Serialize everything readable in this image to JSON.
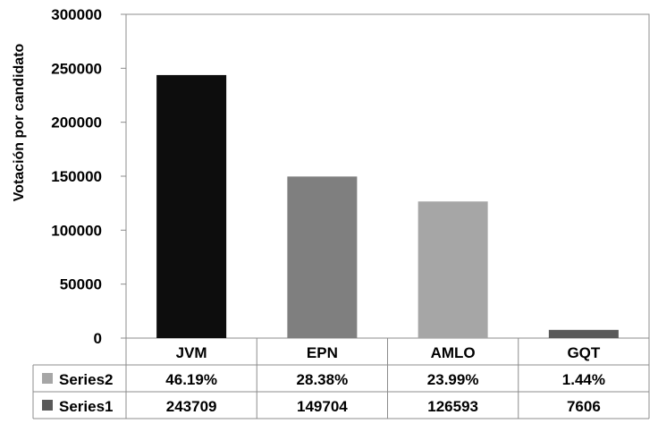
{
  "chart_data": {
    "type": "bar",
    "title": "",
    "xlabel": "",
    "ylabel": "Votación por candidato",
    "categories": [
      "JVM",
      "EPN",
      "AMLO",
      "GQT"
    ],
    "ylim": [
      0,
      300000
    ],
    "yticks": [
      0,
      50000,
      100000,
      150000,
      200000,
      250000,
      300000
    ],
    "bar_values": [
      243709,
      149704,
      126593,
      7606
    ],
    "bar_colors": [
      "#0d0d0d",
      "#7f7f7f",
      "#a6a6a6",
      "#595959"
    ],
    "grid": false,
    "data_table": [
      {
        "name": "Series2",
        "legend_color": "#a6a6a6",
        "cells": [
          "46.19%",
          "28.38%",
          "23.99%",
          "1.44%"
        ]
      },
      {
        "name": "Series1",
        "legend_color": "#595959",
        "cells": [
          "243709",
          "149704",
          "126593",
          "7606"
        ]
      }
    ]
  }
}
